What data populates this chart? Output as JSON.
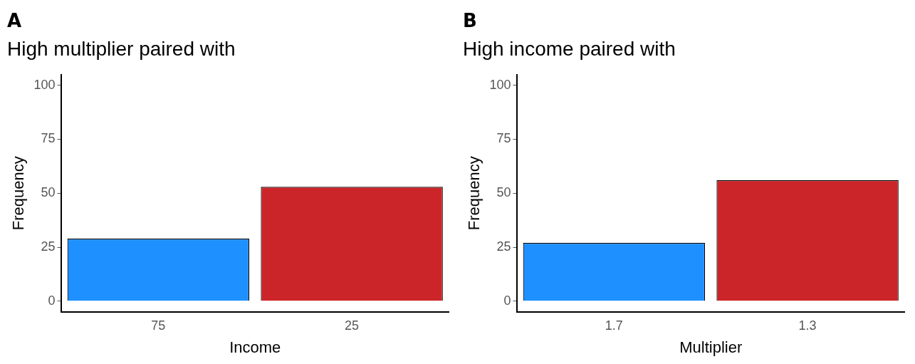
{
  "chart_data": [
    {
      "type": "bar",
      "title": "High multiplier paired with",
      "xlabel": "Income",
      "ylabel": "Frequency",
      "annotations": [
        "A"
      ],
      "categories": [
        "75",
        "25"
      ],
      "values": [
        29,
        53
      ],
      "colors": [
        "#1e90ff",
        "#cc2529"
      ],
      "ylim": [
        -5,
        105
      ],
      "yticks": [
        0,
        25,
        50,
        75,
        100
      ],
      "grid": false,
      "legend": false
    },
    {
      "type": "bar",
      "title": "High income paired with",
      "xlabel": "Multiplier",
      "ylabel": "Frequency",
      "annotations": [
        "B"
      ],
      "categories": [
        "1.7",
        "1.3"
      ],
      "values": [
        27,
        56
      ],
      "colors": [
        "#1e90ff",
        "#cc2529"
      ],
      "ylim": [
        -5,
        105
      ],
      "yticks": [
        0,
        25,
        50,
        75,
        100
      ],
      "grid": false,
      "legend": false
    }
  ]
}
